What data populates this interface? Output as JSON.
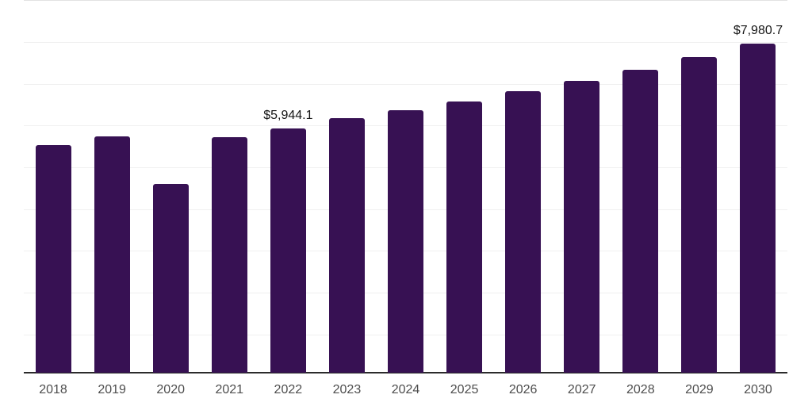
{
  "chart_data": {
    "type": "bar",
    "title": "",
    "xlabel": "",
    "ylabel": "",
    "categories": [
      "2018",
      "2019",
      "2020",
      "2021",
      "2022",
      "2023",
      "2024",
      "2025",
      "2026",
      "2027",
      "2028",
      "2029",
      "2030"
    ],
    "values": [
      5550,
      5750,
      4620,
      5725,
      5944.1,
      6180,
      6385,
      6590,
      6825,
      7080,
      7345,
      7655,
      7980.7
    ],
    "value_unit": "USD million",
    "data_labels": [
      {
        "index": 4,
        "text": "$5,944.1"
      },
      {
        "index": 12,
        "text": "$7,980.7"
      }
    ],
    "ylim": [
      90,
      8980
    ],
    "grid": {
      "enabled": true,
      "interval": 1000,
      "line_values": [
        1000,
        2000,
        3000,
        4000,
        5000,
        6000,
        7000,
        8000,
        9000
      ]
    },
    "legend": "none",
    "colors": {
      "bar": "#371153",
      "axis_line": "#2b2b2b",
      "gridline": "#f0f0f0",
      "gridline_top": "#e2e2e2",
      "data_label_text": "#141414",
      "tick_label_text": "#4d4d4d",
      "background": "#ffffff"
    }
  }
}
